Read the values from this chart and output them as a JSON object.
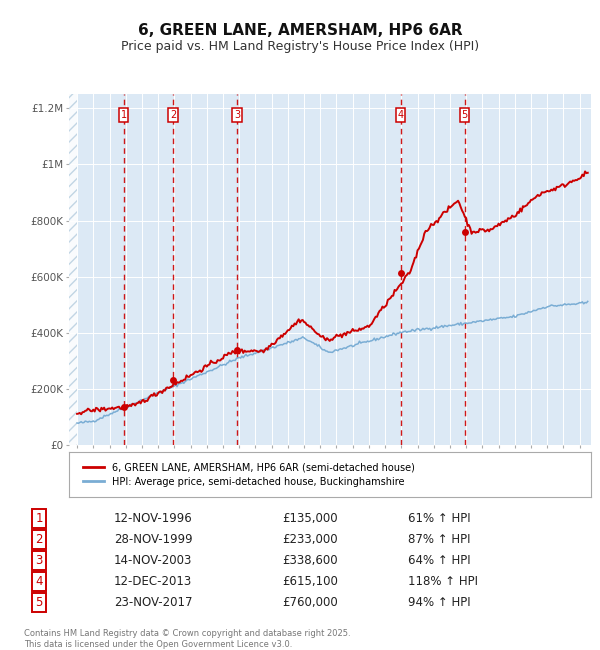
{
  "title": "6, GREEN LANE, AMERSHAM, HP6 6AR",
  "subtitle": "Price paid vs. HM Land Registry's House Price Index (HPI)",
  "title_fontsize": 11,
  "subtitle_fontsize": 9,
  "plot_bg_color": "#dce9f5",
  "sale_dates": [
    1996.87,
    1999.91,
    2003.87,
    2013.95,
    2017.9
  ],
  "sale_prices": [
    135000,
    233000,
    338600,
    615100,
    760000
  ],
  "sale_labels": [
    "1",
    "2",
    "3",
    "4",
    "5"
  ],
  "legend_red": "6, GREEN LANE, AMERSHAM, HP6 6AR (semi-detached house)",
  "legend_blue": "HPI: Average price, semi-detached house, Buckinghamshire",
  "table_rows": [
    [
      "1",
      "12-NOV-1996",
      "£135,000",
      "61% ↑ HPI"
    ],
    [
      "2",
      "28-NOV-1999",
      "£233,000",
      "87% ↑ HPI"
    ],
    [
      "3",
      "14-NOV-2003",
      "£338,600",
      "64% ↑ HPI"
    ],
    [
      "4",
      "12-DEC-2013",
      "£615,100",
      "118% ↑ HPI"
    ],
    [
      "5",
      "23-NOV-2017",
      "£760,000",
      "94% ↑ HPI"
    ]
  ],
  "footer": "Contains HM Land Registry data © Crown copyright and database right 2025.\nThis data is licensed under the Open Government Licence v3.0.",
  "ylim": [
    0,
    1250000
  ],
  "xlim_start": 1993.5,
  "xlim_end": 2025.7,
  "hatch_end": 1994.0,
  "data_start": 1994.0,
  "data_end": 2025.5,
  "red_line_color": "#cc0000",
  "blue_line_color": "#7aadd4",
  "dashed_line_color": "#cc0000",
  "grid_color": "#ffffff",
  "tick_label_color": "#555555",
  "ytick_labels": [
    "£0",
    "£200K",
    "£400K",
    "£600K",
    "£800K",
    "£1M",
    "£1.2M"
  ],
  "ytick_values": [
    0,
    200000,
    400000,
    600000,
    800000,
    1000000,
    1200000
  ]
}
